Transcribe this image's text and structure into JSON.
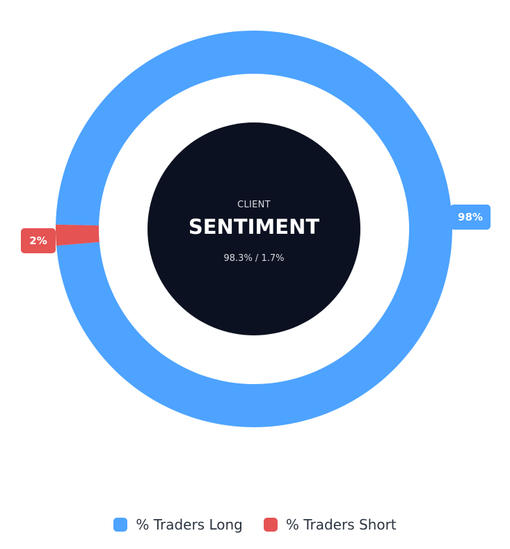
{
  "chart_data": {
    "type": "pie",
    "style": "donut",
    "title": "",
    "center": {
      "line1": "CLIENT",
      "line2": "SENTIMENT",
      "line3": "98.3% / 1.7%"
    },
    "series": [
      {
        "name": "% Traders Long",
        "value": 98.3,
        "label": "98%",
        "color": "#4da3ff"
      },
      {
        "name": "% Traders Short",
        "value": 1.7,
        "label": "2%",
        "color": "#e55353"
      }
    ],
    "legend_position": "bottom"
  },
  "colors": {
    "center_fill": "#0b1120",
    "background": "#ffffff"
  }
}
